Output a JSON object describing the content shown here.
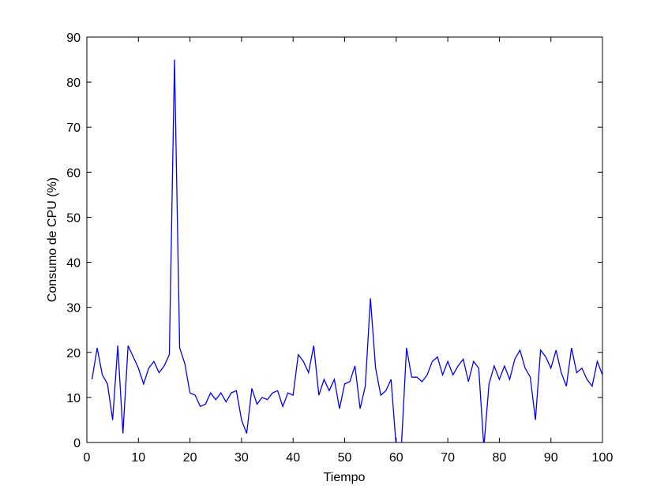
{
  "chart_data": {
    "type": "line",
    "xlabel": "Tiempo",
    "ylabel": "Consumo de CPU (%)",
    "x": [
      1,
      2,
      3,
      4,
      5,
      6,
      7,
      8,
      9,
      10,
      11,
      12,
      13,
      14,
      15,
      16,
      17,
      18,
      19,
      20,
      21,
      22,
      23,
      24,
      25,
      26,
      27,
      28,
      29,
      30,
      31,
      32,
      33,
      34,
      35,
      36,
      37,
      38,
      39,
      40,
      41,
      42,
      43,
      44,
      45,
      46,
      47,
      48,
      49,
      50,
      51,
      52,
      53,
      54,
      55,
      56,
      57,
      58,
      59,
      60,
      61,
      62,
      63,
      64,
      65,
      66,
      67,
      68,
      69,
      70,
      71,
      72,
      73,
      74,
      75,
      76,
      77,
      78,
      79,
      80,
      81,
      82,
      83,
      84,
      85,
      86,
      87,
      88,
      89,
      90,
      91,
      92,
      93,
      94,
      95,
      96,
      97,
      98,
      99,
      100
    ],
    "series": [
      {
        "color": "#0000ff",
        "values": [
          14,
          21,
          15,
          13,
          5,
          21.5,
          2,
          21.5,
          19,
          16.5,
          13,
          16.5,
          18,
          15.5,
          17,
          19.5,
          85,
          21,
          17.5,
          11,
          10.5,
          8,
          8.5,
          11,
          9.5,
          11,
          9,
          11,
          11.5,
          5,
          2,
          12,
          8.5,
          10,
          9.5,
          11,
          11.5,
          8,
          11,
          10.5,
          19.5,
          18,
          15.5,
          21.5,
          10.5,
          14,
          11.5,
          14,
          7.5,
          13,
          13.5,
          17,
          7.5,
          12.5,
          32,
          16.5,
          10.5,
          11.5,
          14,
          -1,
          -1,
          21,
          14.5,
          14.5,
          13.5,
          15,
          18,
          19,
          15,
          18,
          15,
          17,
          18.5,
          13.5,
          18,
          16.5,
          -1,
          13,
          17,
          14,
          17,
          14,
          18.5,
          20.5,
          16.5,
          14.5,
          5,
          20.5,
          19,
          16.5,
          20.5,
          15.5,
          12.5,
          21,
          15.5,
          16.5,
          14,
          12.5,
          18,
          15
        ]
      }
    ],
    "xlim": [
      0,
      100
    ],
    "xticks": [
      0,
      10,
      20,
      30,
      40,
      50,
      60,
      70,
      80,
      90,
      100
    ],
    "ylim": [
      0,
      90
    ],
    "yticks": [
      0,
      10,
      20,
      30,
      40,
      50,
      60,
      70,
      80,
      90
    ]
  }
}
